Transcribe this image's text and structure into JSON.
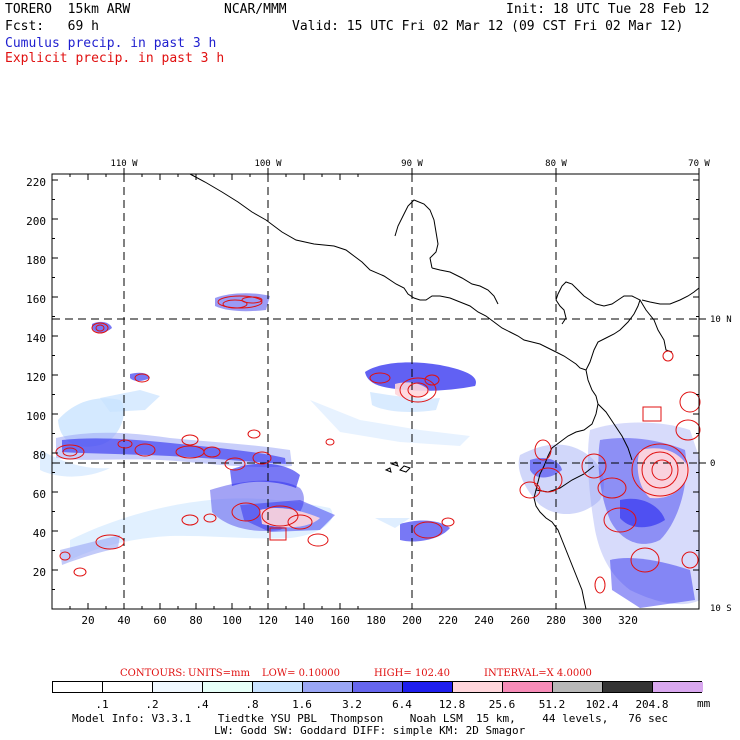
{
  "header": {
    "model": "TORERO  15km ARW",
    "org": "NCAR/MMM",
    "init": "Init: 18 UTC Tue 28 Feb 12",
    "fcst": "Fcst:   69 h",
    "valid": "Valid: 15 UTC Fri 02 Mar 12 (09 CST Fri 02 Mar 12)",
    "line_cumulus": "Cumulus precip. in past 3 h",
    "line_explicit": "Explicit precip. in past 3 h",
    "cumulus_color": "#1f1fcf",
    "explicit_color": "#e01010"
  },
  "map": {
    "lon_labels": [
      "110 W",
      "100 W",
      "90 W",
      "80 W",
      "70 W"
    ],
    "lat_labels": [
      "10 N",
      "0",
      "10 S"
    ],
    "y_ticks": [
      "220",
      "200",
      "180",
      "160",
      "140",
      "120",
      "100",
      "80",
      "60",
      "40",
      "20"
    ],
    "x_ticks": [
      "20",
      "40",
      "60",
      "80",
      "100",
      "120",
      "140",
      "160",
      "180",
      "200",
      "220",
      "240",
      "260",
      "280",
      "300",
      "320"
    ]
  },
  "contours": {
    "label_prefix": "CONTOURS:",
    "units": "UNITS=mm",
    "low": "LOW= 0.10000",
    "high": "HIGH=  102.40",
    "interval": "INTERVAL=X  4.0000"
  },
  "legend": {
    "levels": [
      ".1",
      ".2",
      ".4",
      ".8",
      "1.6",
      "3.2",
      "6.4",
      "12.8",
      "25.6",
      "51.2",
      "102.4",
      "204.8"
    ],
    "unit": "mm",
    "colors": [
      "#ffffff",
      "#ffffff",
      "#f0f8ff",
      "#e6fff8",
      "#c9e3ff",
      "#9aa6f5",
      "#6666ee",
      "#1e1eee",
      "#ffd6dc",
      "#f78cb8",
      "#b8b8b8",
      "#343434",
      "#d9a8ef"
    ]
  },
  "footer": {
    "line1": "Model Info: V3.3.1    Tiedtke YSU PBL  Thompson    Noah LSM  15 km,    44 levels,   76 sec",
    "line2": "LW: Godd SW: Goddard DIFF: simple KM: 2D Smagor"
  }
}
